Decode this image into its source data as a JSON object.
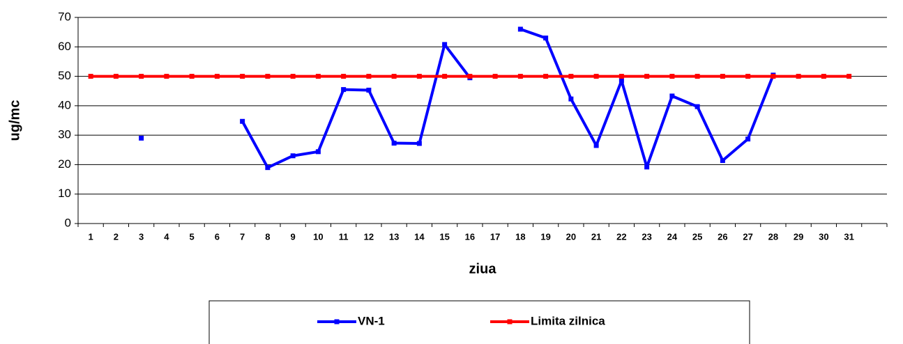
{
  "chart_data": {
    "type": "line",
    "x_label": "ziua",
    "y_label": "ug/mc",
    "categories": [
      "1",
      "2",
      "3",
      "4",
      "5",
      "6",
      "7",
      "8",
      "9",
      "10",
      "11",
      "12",
      "13",
      "14",
      "15",
      "16",
      "17",
      "18",
      "19",
      "20",
      "21",
      "22",
      "23",
      "24",
      "25",
      "26",
      "27",
      "28",
      "29",
      "30",
      "31",
      null
    ],
    "series": [
      {
        "name": "VN-1",
        "color": "#0000ff",
        "values": [
          null,
          null,
          29,
          null,
          null,
          null,
          34.7,
          19,
          23,
          24.4,
          45.5,
          45.3,
          27.3,
          27.2,
          60.8,
          49.5,
          null,
          66,
          63,
          42.3,
          26.5,
          48.5,
          19.2,
          43.3,
          39.7,
          21.4,
          28.7,
          50.4,
          null,
          null,
          null,
          null
        ]
      },
      {
        "name": "Limita zilnica",
        "color": "#ff0000",
        "values": [
          50,
          50,
          50,
          50,
          50,
          50,
          50,
          50,
          50,
          50,
          50,
          50,
          50,
          50,
          50,
          50,
          50,
          50,
          50,
          50,
          50,
          50,
          50,
          50,
          50,
          50,
          50,
          50,
          50,
          50,
          50,
          null
        ]
      }
    ],
    "ylim": [
      0,
      70
    ],
    "yticks": [
      0,
      10,
      20,
      30,
      40,
      50,
      60,
      70
    ],
    "grid": true,
    "legend": "bottom"
  }
}
